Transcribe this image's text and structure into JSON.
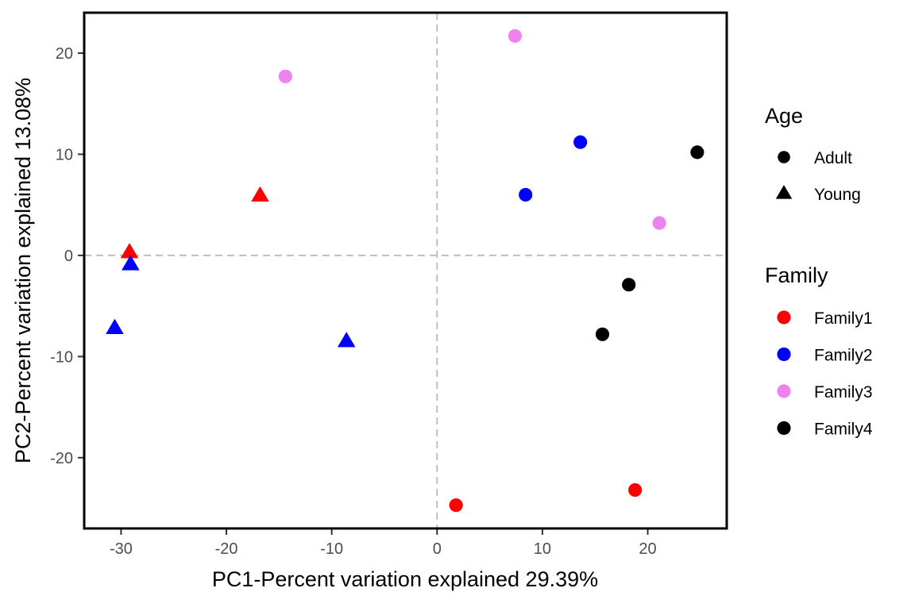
{
  "chart_data": {
    "type": "scatter",
    "xlabel": "PC1-Percent variation explained 29.39%",
    "ylabel": "PC2-Percent variation explained 13.08%",
    "xlim": [
      -33.5,
      27.5
    ],
    "ylim": [
      -27,
      24
    ],
    "xticks": [
      -30,
      -20,
      -10,
      0,
      10,
      20
    ],
    "yticks": [
      -20,
      -10,
      0,
      10,
      20
    ],
    "xtick_labels": [
      "-30",
      "-20",
      "-10",
      "0",
      "10",
      "20"
    ],
    "ytick_labels": [
      "-20",
      "-10",
      "0",
      "10",
      "20"
    ],
    "reference_lines": {
      "x": 0,
      "y": 0,
      "style": "dashed",
      "color": "#bfbfbf"
    },
    "grid": false,
    "legend_position": "right",
    "legends": {
      "shape": {
        "title": "Age",
        "items": [
          {
            "label": "Adult",
            "shape": "circle"
          },
          {
            "label": "Young",
            "shape": "triangle"
          }
        ]
      },
      "color": {
        "title": "Family",
        "items": [
          {
            "label": "Family1",
            "color": "#ff0000"
          },
          {
            "label": "Family2",
            "color": "#0000ff"
          },
          {
            "label": "Family3",
            "color": "#ee82ee"
          },
          {
            "label": "Family4",
            "color": "#000000"
          }
        ]
      }
    },
    "points": [
      {
        "x": 1.8,
        "y": -24.7,
        "age": "Adult",
        "family": "Family1"
      },
      {
        "x": 18.8,
        "y": -23.2,
        "age": "Adult",
        "family": "Family1"
      },
      {
        "x": -29.2,
        "y": 0.3,
        "age": "Young",
        "family": "Family1"
      },
      {
        "x": -16.8,
        "y": 5.9,
        "age": "Young",
        "family": "Family1"
      },
      {
        "x": 8.4,
        "y": 6.0,
        "age": "Adult",
        "family": "Family2"
      },
      {
        "x": 13.6,
        "y": 11.2,
        "age": "Adult",
        "family": "Family2"
      },
      {
        "x": -29.1,
        "y": -0.9,
        "age": "Young",
        "family": "Family2"
      },
      {
        "x": -30.6,
        "y": -7.2,
        "age": "Young",
        "family": "Family2"
      },
      {
        "x": -8.6,
        "y": -8.5,
        "age": "Young",
        "family": "Family2"
      },
      {
        "x": 7.4,
        "y": 21.7,
        "age": "Adult",
        "family": "Family3"
      },
      {
        "x": 21.1,
        "y": 3.2,
        "age": "Adult",
        "family": "Family3"
      },
      {
        "x": -14.4,
        "y": 17.7,
        "age": "Adult",
        "family": "Family3"
      },
      {
        "x": 24.7,
        "y": 10.2,
        "age": "Adult",
        "family": "Family4"
      },
      {
        "x": 18.2,
        "y": -2.9,
        "age": "Adult",
        "family": "Family4"
      },
      {
        "x": 15.7,
        "y": -7.8,
        "age": "Adult",
        "family": "Family4"
      }
    ]
  }
}
